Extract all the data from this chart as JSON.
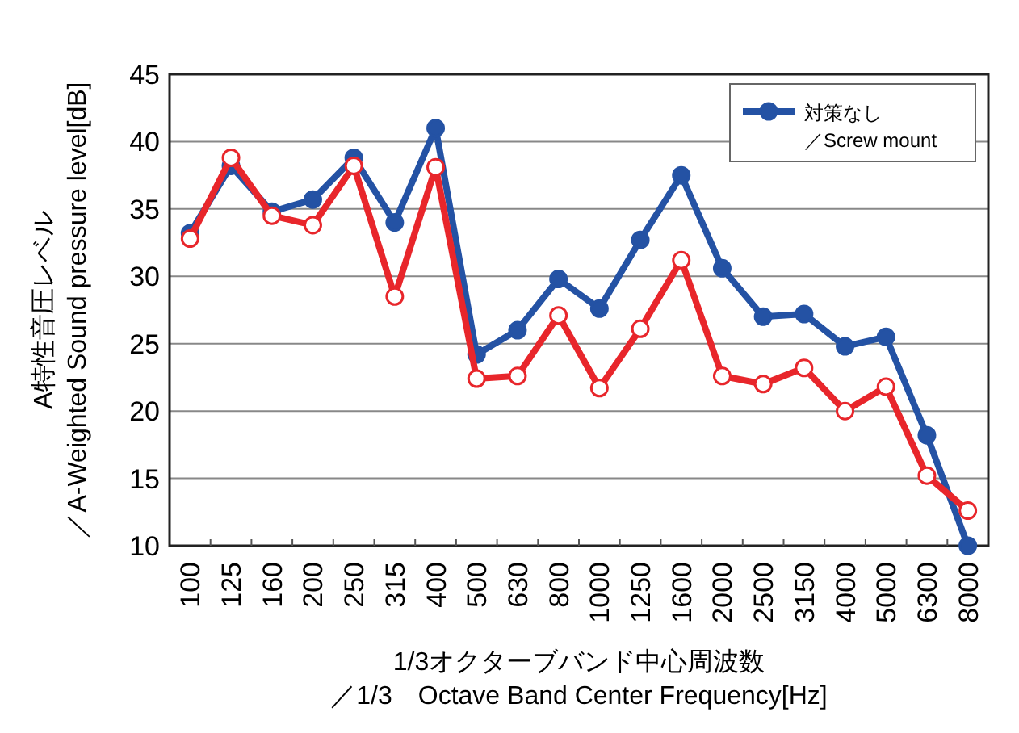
{
  "chart_data": {
    "type": "line",
    "xlabel": "1/3オクターブバンド中心周波数／1/3　Octave Band Center Frequency[Hz]",
    "ylabel": "A特性音圧レベル／A-Weighted Sound pressure level[dB]",
    "categories": [
      "100",
      "125",
      "160",
      "200",
      "250",
      "315",
      "400",
      "500",
      "630",
      "800",
      "1000",
      "1250",
      "1600",
      "2000",
      "2500",
      "3150",
      "4000",
      "5000",
      "6300",
      "8000"
    ],
    "series": [
      {
        "name": "対策なし／Screw mount",
        "color": "#2452a4",
        "marker": "circle",
        "values": [
          33.2,
          38.2,
          34.8,
          35.7,
          38.8,
          34,
          41,
          24.2,
          26,
          29.8,
          27.6,
          32.7,
          37.5,
          30.6,
          27,
          27.2,
          24.8,
          25.5,
          18.2,
          10
        ]
      },
      {
        "color": "#e8262b",
        "marker": "circle",
        "values": [
          32.8,
          38.8,
          34.5,
          33.8,
          38.2,
          28.5,
          38.1,
          22.4,
          22.6,
          27.1,
          21.7,
          26.1,
          31.2,
          22.6,
          22,
          23.2,
          20,
          21.8,
          15.2,
          12.6
        ]
      }
    ],
    "ylim": [
      10,
      45
    ],
    "yticks": [
      10,
      15,
      20,
      25,
      30,
      35,
      40,
      45
    ],
    "grid": "y",
    "legend": "top right"
  }
}
